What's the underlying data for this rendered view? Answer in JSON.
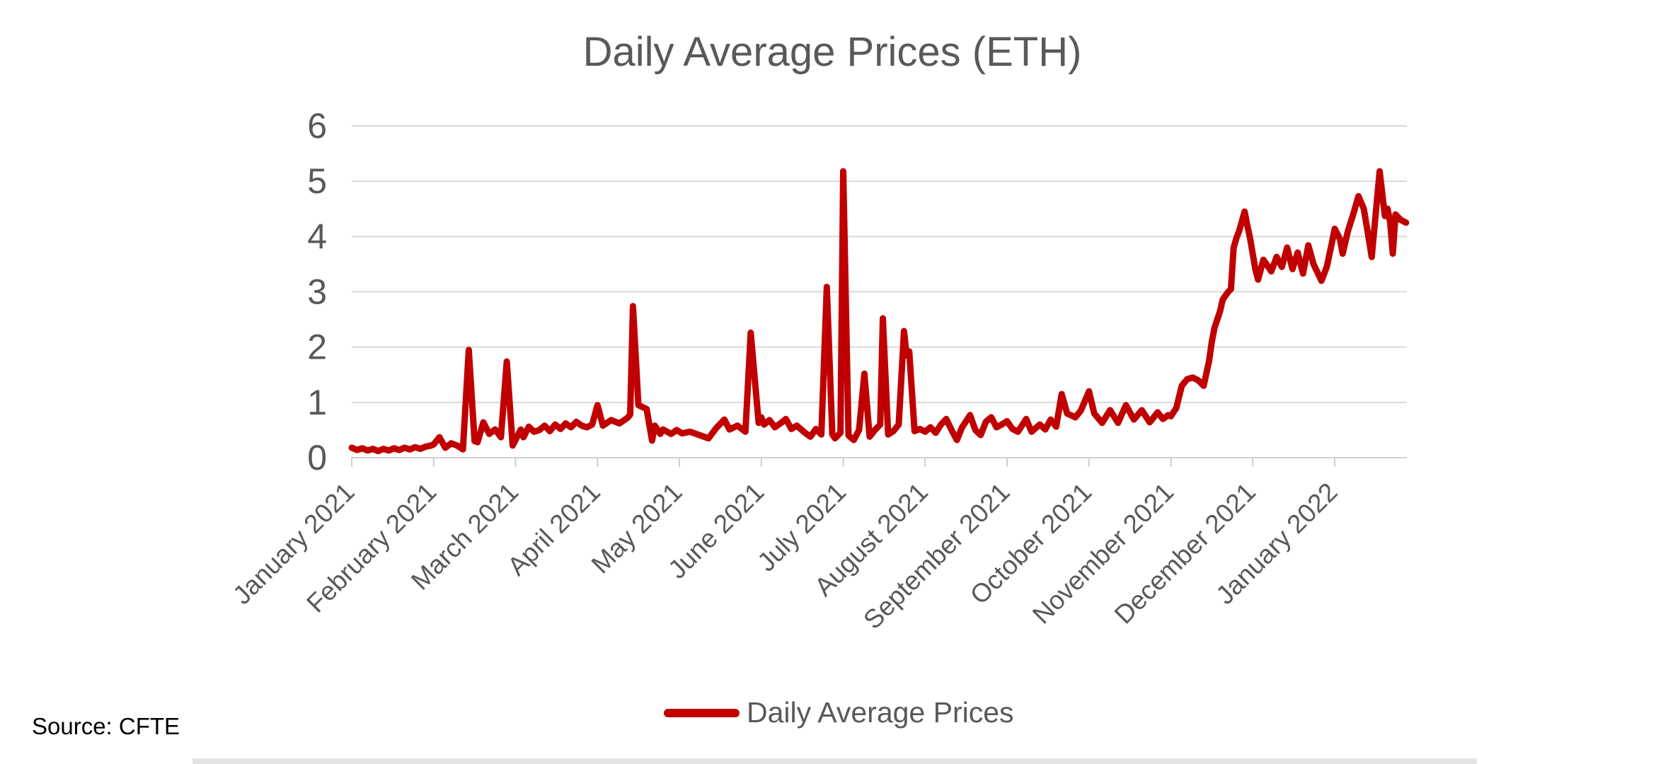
{
  "title": "Daily Average Prices (ETH)",
  "source_note": "Source: CFTE",
  "legend": {
    "label": "Daily Average Prices"
  },
  "colors": {
    "line": "#c00000",
    "grid": "#d9d9d9",
    "axis": "#cfcfcf",
    "text": "#595959",
    "source_text": "#000000",
    "bottom_bar": "#e3e3e3",
    "background": "#ffffff"
  },
  "chart_data": {
    "type": "line",
    "title": "Daily Average Prices (ETH)",
    "xlabel": "",
    "ylabel": "",
    "ylim": [
      0,
      6
    ],
    "y_ticks": [
      0,
      1,
      2,
      3,
      4,
      5,
      6
    ],
    "grid": "horizontal",
    "legend_position": "bottom",
    "x_tick_labels": [
      "January 2021",
      "February 2021",
      "March 2021",
      "April 2021",
      "May 2021",
      "June 2021",
      "July 2021",
      "August 2021",
      "September 2021",
      "October 2021",
      "November 2021",
      "December 2021",
      "January 2022"
    ],
    "series": [
      {
        "name": "Daily Average Prices",
        "color": "#c00000",
        "points": [
          [
            "2021-01-01",
            0.18
          ],
          [
            "2021-01-03",
            0.14
          ],
          [
            "2021-01-05",
            0.17
          ],
          [
            "2021-01-07",
            0.13
          ],
          [
            "2021-01-09",
            0.16
          ],
          [
            "2021-01-11",
            0.12
          ],
          [
            "2021-01-13",
            0.16
          ],
          [
            "2021-01-15",
            0.13
          ],
          [
            "2021-01-17",
            0.17
          ],
          [
            "2021-01-19",
            0.14
          ],
          [
            "2021-01-21",
            0.18
          ],
          [
            "2021-01-23",
            0.15
          ],
          [
            "2021-01-25",
            0.19
          ],
          [
            "2021-01-27",
            0.16
          ],
          [
            "2021-01-29",
            0.2
          ],
          [
            "2021-01-31",
            0.22
          ],
          [
            "2021-02-01",
            0.24
          ],
          [
            "2021-02-03",
            0.37
          ],
          [
            "2021-02-05",
            0.18
          ],
          [
            "2021-02-07",
            0.26
          ],
          [
            "2021-02-09",
            0.22
          ],
          [
            "2021-02-11",
            0.15
          ],
          [
            "2021-02-13",
            1.95
          ],
          [
            "2021-02-15",
            0.3
          ],
          [
            "2021-02-16",
            0.28
          ],
          [
            "2021-02-18",
            0.64
          ],
          [
            "2021-02-20",
            0.43
          ],
          [
            "2021-02-22",
            0.51
          ],
          [
            "2021-02-24",
            0.37
          ],
          [
            "2021-02-26",
            1.74
          ],
          [
            "2021-02-28",
            0.22
          ],
          [
            "2021-03-03",
            0.51
          ],
          [
            "2021-03-04",
            0.37
          ],
          [
            "2021-03-06",
            0.56
          ],
          [
            "2021-03-08",
            0.47
          ],
          [
            "2021-03-10",
            0.5
          ],
          [
            "2021-03-12",
            0.58
          ],
          [
            "2021-03-14",
            0.48
          ],
          [
            "2021-03-16",
            0.6
          ],
          [
            "2021-03-18",
            0.52
          ],
          [
            "2021-03-20",
            0.62
          ],
          [
            "2021-03-22",
            0.55
          ],
          [
            "2021-03-24",
            0.65
          ],
          [
            "2021-03-26",
            0.58
          ],
          [
            "2021-03-28",
            0.55
          ],
          [
            "2021-03-30",
            0.6
          ],
          [
            "2021-04-01",
            0.95
          ],
          [
            "2021-04-03",
            0.58
          ],
          [
            "2021-04-06",
            0.68
          ],
          [
            "2021-04-09",
            0.62
          ],
          [
            "2021-04-12",
            0.72
          ],
          [
            "2021-04-13",
            0.78
          ],
          [
            "2021-04-14",
            2.74
          ],
          [
            "2021-04-16",
            0.95
          ],
          [
            "2021-04-19",
            0.88
          ],
          [
            "2021-04-21",
            0.31
          ],
          [
            "2021-04-22",
            0.58
          ],
          [
            "2021-04-24",
            0.43
          ],
          [
            "2021-04-25",
            0.51
          ],
          [
            "2021-04-28",
            0.43
          ],
          [
            "2021-04-30",
            0.5
          ],
          [
            "2021-05-02",
            0.44
          ],
          [
            "2021-05-05",
            0.47
          ],
          [
            "2021-05-08",
            0.42
          ],
          [
            "2021-05-12",
            0.35
          ],
          [
            "2021-05-15",
            0.54
          ],
          [
            "2021-05-18",
            0.69
          ],
          [
            "2021-05-20",
            0.51
          ],
          [
            "2021-05-23",
            0.58
          ],
          [
            "2021-05-26",
            0.47
          ],
          [
            "2021-05-28",
            2.26
          ],
          [
            "2021-05-31",
            0.63
          ],
          [
            "2021-06-01",
            0.73
          ],
          [
            "2021-06-02",
            0.6
          ],
          [
            "2021-06-04",
            0.68
          ],
          [
            "2021-06-06",
            0.55
          ],
          [
            "2021-06-08",
            0.62
          ],
          [
            "2021-06-10",
            0.7
          ],
          [
            "2021-06-12",
            0.52
          ],
          [
            "2021-06-14",
            0.58
          ],
          [
            "2021-06-17",
            0.45
          ],
          [
            "2021-06-19",
            0.38
          ],
          [
            "2021-06-21",
            0.52
          ],
          [
            "2021-06-23",
            0.42
          ],
          [
            "2021-06-25",
            3.09
          ],
          [
            "2021-06-27",
            0.42
          ],
          [
            "2021-06-28",
            0.35
          ],
          [
            "2021-06-30",
            0.45
          ],
          [
            "2021-07-01",
            5.18
          ],
          [
            "2021-07-03",
            0.4
          ],
          [
            "2021-07-05",
            0.32
          ],
          [
            "2021-07-07",
            0.5
          ],
          [
            "2021-07-09",
            1.52
          ],
          [
            "2021-07-11",
            0.38
          ],
          [
            "2021-07-13",
            0.5
          ],
          [
            "2021-07-15",
            0.6
          ],
          [
            "2021-07-16",
            2.52
          ],
          [
            "2021-07-18",
            0.42
          ],
          [
            "2021-07-20",
            0.48
          ],
          [
            "2021-07-22",
            0.6
          ],
          [
            "2021-07-24",
            2.29
          ],
          [
            "2021-07-25",
            1.85
          ],
          [
            "2021-07-26",
            1.92
          ],
          [
            "2021-07-28",
            0.48
          ],
          [
            "2021-07-30",
            0.52
          ],
          [
            "2021-08-01",
            0.47
          ],
          [
            "2021-08-03",
            0.55
          ],
          [
            "2021-08-05",
            0.45
          ],
          [
            "2021-08-07",
            0.6
          ],
          [
            "2021-08-09",
            0.7
          ],
          [
            "2021-08-11",
            0.5
          ],
          [
            "2021-08-13",
            0.32
          ],
          [
            "2021-08-15",
            0.55
          ],
          [
            "2021-08-18",
            0.77
          ],
          [
            "2021-08-20",
            0.5
          ],
          [
            "2021-08-22",
            0.41
          ],
          [
            "2021-08-24",
            0.65
          ],
          [
            "2021-08-26",
            0.73
          ],
          [
            "2021-08-28",
            0.55
          ],
          [
            "2021-08-30",
            0.6
          ],
          [
            "2021-09-01",
            0.66
          ],
          [
            "2021-09-03",
            0.52
          ],
          [
            "2021-09-05",
            0.47
          ],
          [
            "2021-09-08",
            0.7
          ],
          [
            "2021-09-10",
            0.47
          ],
          [
            "2021-09-13",
            0.6
          ],
          [
            "2021-09-15",
            0.51
          ],
          [
            "2021-09-17",
            0.69
          ],
          [
            "2021-09-19",
            0.56
          ],
          [
            "2021-09-21",
            1.15
          ],
          [
            "2021-09-23",
            0.8
          ],
          [
            "2021-09-26",
            0.73
          ],
          [
            "2021-09-28",
            0.85
          ],
          [
            "2021-10-01",
            1.2
          ],
          [
            "2021-10-03",
            0.8
          ],
          [
            "2021-10-06",
            0.63
          ],
          [
            "2021-10-09",
            0.86
          ],
          [
            "2021-10-12",
            0.63
          ],
          [
            "2021-10-15",
            0.95
          ],
          [
            "2021-10-18",
            0.69
          ],
          [
            "2021-10-21",
            0.86
          ],
          [
            "2021-10-24",
            0.64
          ],
          [
            "2021-10-27",
            0.82
          ],
          [
            "2021-10-29",
            0.7
          ],
          [
            "2021-10-31",
            0.77
          ],
          [
            "2021-11-01",
            0.75
          ],
          [
            "2021-11-03",
            0.9
          ],
          [
            "2021-11-05",
            1.3
          ],
          [
            "2021-11-07",
            1.42
          ],
          [
            "2021-11-09",
            1.45
          ],
          [
            "2021-11-11",
            1.4
          ],
          [
            "2021-11-13",
            1.3
          ],
          [
            "2021-11-15",
            1.75
          ],
          [
            "2021-11-16",
            2.1
          ],
          [
            "2021-11-17",
            2.35
          ],
          [
            "2021-11-19",
            2.65
          ],
          [
            "2021-11-20",
            2.86
          ],
          [
            "2021-11-22",
            3.0
          ],
          [
            "2021-11-23",
            3.05
          ],
          [
            "2021-11-24",
            3.8
          ],
          [
            "2021-11-25",
            3.97
          ],
          [
            "2021-11-26",
            4.1
          ],
          [
            "2021-11-28",
            4.45
          ],
          [
            "2021-11-29",
            4.2
          ],
          [
            "2021-11-30",
            3.97
          ],
          [
            "2021-12-02",
            3.4
          ],
          [
            "2021-12-03",
            3.22
          ],
          [
            "2021-12-05",
            3.58
          ],
          [
            "2021-12-08",
            3.37
          ],
          [
            "2021-12-10",
            3.63
          ],
          [
            "2021-12-12",
            3.45
          ],
          [
            "2021-12-14",
            3.8
          ],
          [
            "2021-12-16",
            3.41
          ],
          [
            "2021-12-18",
            3.71
          ],
          [
            "2021-12-20",
            3.33
          ],
          [
            "2021-12-22",
            3.84
          ],
          [
            "2021-12-24",
            3.5
          ],
          [
            "2021-12-27",
            3.2
          ],
          [
            "2021-12-29",
            3.45
          ],
          [
            "2021-12-31",
            3.9
          ],
          [
            "2022-01-01",
            4.14
          ],
          [
            "2022-01-03",
            3.95
          ],
          [
            "2022-01-04",
            3.69
          ],
          [
            "2022-01-06",
            4.1
          ],
          [
            "2022-01-08",
            4.4
          ],
          [
            "2022-01-10",
            4.73
          ],
          [
            "2022-01-12",
            4.5
          ],
          [
            "2022-01-13",
            4.22
          ],
          [
            "2022-01-15",
            3.63
          ],
          [
            "2022-01-18",
            5.18
          ],
          [
            "2022-01-20",
            4.37
          ],
          [
            "2022-01-21",
            4.5
          ],
          [
            "2022-01-22",
            4.25
          ],
          [
            "2022-01-23",
            3.69
          ],
          [
            "2022-01-24",
            4.4
          ],
          [
            "2022-01-26",
            4.3
          ],
          [
            "2022-01-28",
            4.25
          ]
        ]
      }
    ]
  }
}
